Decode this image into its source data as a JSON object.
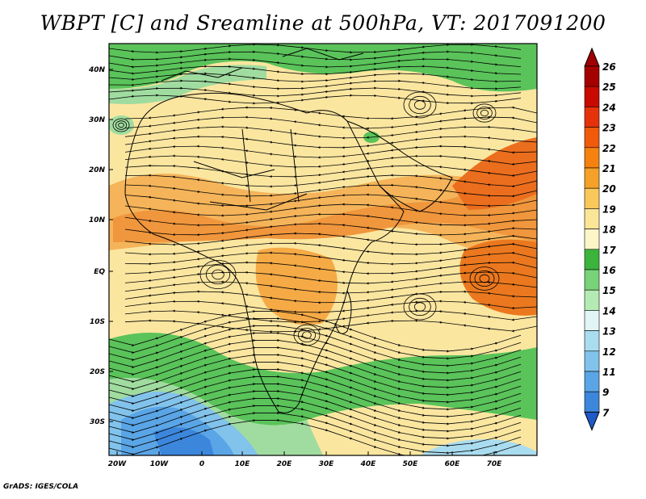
{
  "title": "WBPT [C] and Sreamline at 500hPa, VT: 2017091200",
  "credit": "GrADS: IGES/COLA",
  "axes": {
    "lat_ticks": [
      "40N",
      "30N",
      "20N",
      "10N",
      "EQ",
      "10S",
      "20S",
      "30S"
    ],
    "lon_ticks": [
      "20W",
      "10W",
      "0",
      "10E",
      "20E",
      "30E",
      "40E",
      "50E",
      "60E",
      "70E"
    ]
  },
  "colorbar": {
    "labels": [
      "26",
      "25",
      "24",
      "23",
      "22",
      "21",
      "20",
      "19",
      "18",
      "17",
      "16",
      "15",
      "14",
      "13",
      "12",
      "11",
      "9",
      "7"
    ],
    "colors": [
      "#a50000",
      "#c80a00",
      "#e6320a",
      "#f05a0a",
      "#f5820f",
      "#f5a028",
      "#fac85a",
      "#fae696",
      "#fbf5c8",
      "#3cb43c",
      "#78d278",
      "#b4ebb4",
      "#e1f5f5",
      "#aadcf0",
      "#82c3ec",
      "#5aa5e6",
      "#3c87dc",
      "#1e64c8"
    ],
    "top_color": "#a00000",
    "bottom_color": "#1e5ac8"
  },
  "colors": {
    "cool_blue": "#3c87dc",
    "green": "#5ac35a",
    "light_green": "#a0dca0",
    "yellow": "#fbe6a0",
    "orange": "#f5a03c",
    "deep_orange": "#eb781e",
    "streamline": "#000000",
    "coastline": "#000000"
  }
}
